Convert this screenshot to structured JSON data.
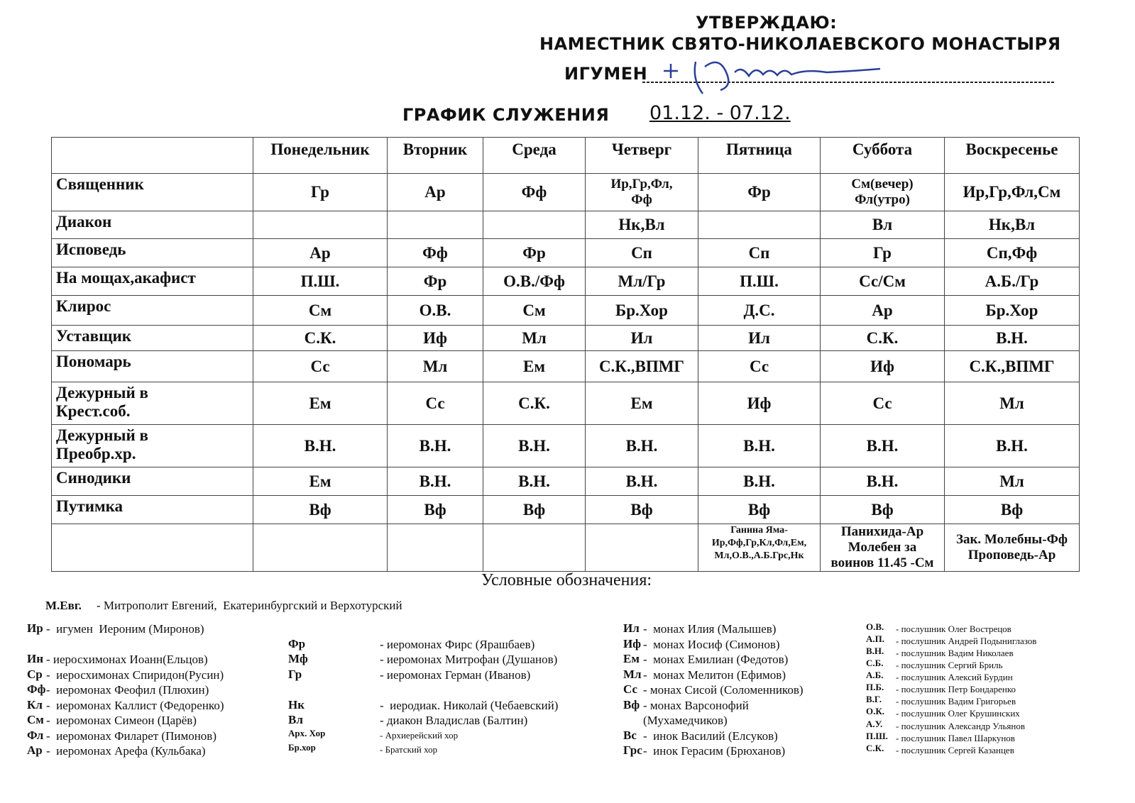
{
  "header": {
    "approve": "УТВЕРЖДАЮ:",
    "position": "НАМЕСТНИК СВЯТО-НИКОЛАЕВСКОГО МОНАСТЫРЯ",
    "rank": "ИГУМЕН"
  },
  "title": {
    "text": "ГРАФИК СЛУЖЕНИЯ",
    "dates": "01.12. - 07.12."
  },
  "table": {
    "columns": [
      "Понедельник",
      "Вторник",
      "Среда",
      "Четверг",
      "Пятница",
      "Суббота",
      "Воскресенье"
    ],
    "rows": [
      {
        "label": "Священник",
        "cells": [
          "Гр",
          "Ар",
          "Фф",
          "Ир,Гр,Фл,\nФф",
          "Фр",
          "См(вечер)\nФл(утро)",
          "Ир,Гр,Фл,См"
        ]
      },
      {
        "label": "Диакон",
        "cells": [
          null,
          null,
          null,
          "Нк,Вл",
          null,
          "Вл",
          "Нк,Вл"
        ]
      },
      {
        "label": "Исповедь",
        "cells": [
          "Ар",
          "Фф",
          "Фр",
          "Сп",
          "Сп",
          "Гр",
          "Сп,Фф"
        ]
      },
      {
        "label": "На мощах,акафист",
        "cells": [
          "П.Ш.",
          "Фр",
          "О.В./Фф",
          "Мл/Гр",
          "П.Ш.",
          "Сс/См",
          "А.Б./Гр"
        ]
      },
      {
        "label": "Клирос",
        "cells": [
          "См",
          "О.В.",
          "См",
          "Бр.Хор",
          "Д.С.",
          "Ар",
          "Бр.Хор"
        ]
      },
      {
        "label": "Уставщик",
        "cells": [
          "С.К.",
          "Иф",
          "Мл",
          "Ил",
          "Ил",
          "С.К.",
          "В.Н."
        ]
      },
      {
        "label": "Пономарь",
        "cells": [
          "Сс",
          "Мл",
          "Ем",
          "С.К.,ВПМГ",
          "Сс",
          "Иф",
          "С.К.,ВПМГ"
        ]
      },
      {
        "label": "Дежурный в\nКрест.соб.",
        "cells": [
          "Ем",
          "Сс",
          "С.К.",
          "Ем",
          "Иф",
          "Сс",
          "Мл"
        ]
      },
      {
        "label": "Дежурный в\nПреобр.хр.",
        "cells": [
          "В.Н.",
          "В.Н.",
          "В.Н.",
          "В.Н.",
          "В.Н.",
          "В.Н.",
          "В.Н."
        ]
      },
      {
        "label": "Синодики",
        "cells": [
          "Ем",
          "В.Н.",
          "В.Н.",
          "В.Н.",
          "В.Н.",
          "В.Н.",
          "Мл"
        ]
      },
      {
        "label": "Путимка",
        "cells": [
          "Вф",
          "Вф",
          "Вф",
          "Вф",
          "Вф",
          "Вф",
          "Вф"
        ]
      },
      {
        "label": null,
        "cells": [
          null,
          null,
          null,
          null,
          "Ганина Яма-\nИр,Фф,Гр,Кл,Фл,Ем,\nМл,О.В.,А.Б.Грс,Нк",
          "Панихида-Ар\nМолебен за\nвоинов 11.45 -См",
          "Зак. Молебны-Фф\nПроповедь-Ар"
        ]
      }
    ]
  },
  "legend": {
    "title": "Условные обозначения:",
    "metropolitan": {
      "abbr": "М.Евг.",
      "text": "- Митрополит Евгений,  Екатеринбургский и Верхотурский"
    },
    "columns": [
      {
        "entries": [
          {
            "abbr": "Ир",
            "text": "-  игумен  Иероним (Миронов)"
          },
          {
            "abbr": "Ин",
            "text": "- иеросхимонах Иоанн(Ельцов)"
          },
          {
            "abbr": "Ср",
            "text": "-  иеросхимонах Спиридон(Русин)"
          },
          {
            "abbr": "Фф",
            "text": "-  иеромонах Феофил (Плюхин)"
          },
          {
            "abbr": "Кл",
            "text": "-  иеромонах Каллист (Федоренко)"
          },
          {
            "abbr": "См",
            "text": "-  иеромонах Симеон (Царёв)"
          },
          {
            "abbr": "Фл",
            "text": "-  иеромонах Филарет (Пимонов)"
          },
          {
            "abbr": "Ар",
            "text": "-  иеромонах Арефа (Кульбака)"
          }
        ]
      },
      {
        "entries": [
          {
            "abbr": "Фр",
            "text": "- иеромонах Фирс (Ярашбаев)"
          },
          {
            "abbr": "Мф",
            "text": "- иеромонах Митрофан (Душанов)"
          },
          {
            "abbr": "Гр",
            "text": "- иеромонах Герман (Иванов)"
          },
          {
            "abbr": "Нк",
            "text": "-  иеродиак. Николай (Чебаевский)"
          },
          {
            "abbr": "Вл",
            "text": "- диакон Владислав (Балтин)"
          },
          {
            "abbr": "Арх. Хор",
            "text": "- Архиерейский хор"
          },
          {
            "abbr": "Бр.хор",
            "text": "- Братский хор"
          }
        ]
      },
      {
        "entries": [
          {
            "abbr": "Ил",
            "text": "-  монах Илия (Малышев)"
          },
          {
            "abbr": "Иф",
            "text": "-  монах Иосиф (Симонов)"
          },
          {
            "abbr": "Ем",
            "text": "-  монах Емилиан (Федотов)"
          },
          {
            "abbr": "Мл",
            "text": "-  монах Мелитон (Ефимов)"
          },
          {
            "abbr": "Сс",
            "text": "- монах Сисой (Соломенников)"
          },
          {
            "abbr": "Вф",
            "text": "- монах Варсонофий\n(Мухамедчиков)"
          },
          {
            "abbr": "Вс",
            "text": "-  инок Василий (Елсуков)"
          },
          {
            "abbr": "Грс",
            "text": "-  инок Герасим (Брюханов)"
          }
        ]
      },
      {
        "entries": [
          {
            "abbr": "О.В.",
            "text": "- послушник Олег Вострецов"
          },
          {
            "abbr": "А.П.",
            "text": "- послушник Андрей Подыниглазов"
          },
          {
            "abbr": "В.Н.",
            "text": "- послушник Вадим Николаев"
          },
          {
            "abbr": "С.Б.",
            "text": "- послушник Сергий Бриль"
          },
          {
            "abbr": "А.Б.",
            "text": "- послушник Алексий Бурдин"
          },
          {
            "abbr": "П.Б.",
            "text": "- послушник Петр Бондаренко"
          },
          {
            "abbr": "В.Г.",
            "text": "- послушник Вадим Григорьев"
          },
          {
            "abbr": "О.К.",
            "text": "- послушник Олег Крушинских"
          },
          {
            "abbr": "А.У.",
            "text": "- послушник Александр Ульянов"
          },
          {
            "abbr": "П.Ш.",
            "text": "- послушник Павел Шаркунов"
          },
          {
            "abbr": "С.К.",
            "text": "- послушник Сергей Казанцев"
          }
        ]
      }
    ]
  }
}
